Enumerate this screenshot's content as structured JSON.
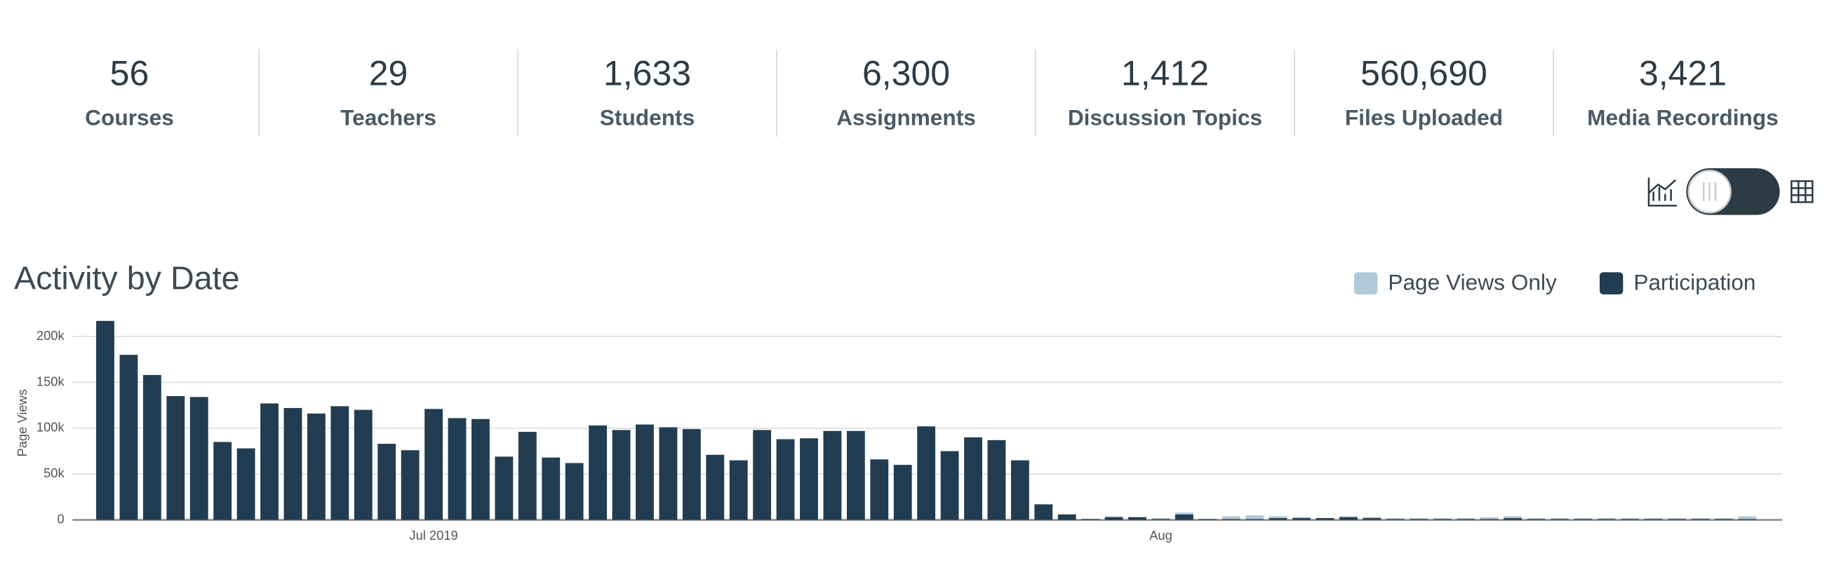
{
  "stats": [
    {
      "value": "56",
      "label": "Courses"
    },
    {
      "value": "29",
      "label": "Teachers"
    },
    {
      "value": "1,633",
      "label": "Students"
    },
    {
      "value": "6,300",
      "label": "Assignments"
    },
    {
      "value": "1,412",
      "label": "Discussion Topics"
    },
    {
      "value": "560,690",
      "label": "Files Uploaded"
    },
    {
      "value": "3,421",
      "label": "Media Recordings"
    }
  ],
  "chart_data": {
    "type": "stacked-bar",
    "title": "Activity by Date",
    "y_label": "Page Views",
    "categories": [
      null,
      null,
      null,
      null,
      null,
      null,
      null,
      null,
      null,
      null,
      null,
      null,
      null,
      null,
      "Jul 2019",
      null,
      null,
      null,
      null,
      null,
      null,
      null,
      null,
      null,
      null,
      null,
      null,
      null,
      null,
      null,
      null,
      null,
      null,
      null,
      null,
      null,
      null,
      null,
      null,
      null,
      null,
      null,
      null,
      null,
      null,
      "Aug",
      null,
      null,
      null,
      null,
      null,
      null,
      null,
      null,
      null,
      null,
      null,
      null,
      null,
      null,
      null,
      null,
      null,
      null,
      null,
      null,
      null,
      null,
      null,
      null,
      null
    ],
    "series": [
      {
        "name": "Page Views Only",
        "color": "#b1c9d9",
        "values": [
          0,
          0,
          0,
          0,
          0,
          0,
          0,
          0,
          0,
          0,
          0,
          0,
          0,
          0,
          0,
          0,
          0,
          0,
          0,
          0,
          0,
          0,
          0,
          0,
          0,
          0,
          0,
          0,
          0,
          0,
          0,
          0,
          0,
          0,
          0,
          0,
          0,
          0,
          0,
          0,
          0,
          0,
          0,
          1000,
          0,
          1000,
          2000,
          0,
          3000,
          4000,
          2000,
          1000,
          0,
          1000,
          1000,
          1000,
          1000,
          1000,
          1000,
          2000,
          2000,
          1000,
          1000,
          1000,
          1000,
          1000,
          1000,
          1000,
          1000,
          1000,
          3000
        ]
      },
      {
        "name": "Participation",
        "color": "#223d52",
        "values": [
          217000,
          180000,
          158000,
          135000,
          134000,
          85000,
          78000,
          127000,
          122000,
          116000,
          124000,
          120000,
          83000,
          76000,
          121000,
          111000,
          110000,
          69000,
          96000,
          68000,
          62000,
          103000,
          98000,
          104000,
          101000,
          99000,
          71000,
          65000,
          98000,
          88000,
          89000,
          97000,
          97000,
          66000,
          60000,
          102000,
          75000,
          90000,
          87000,
          65000,
          17000,
          6000,
          1000,
          3000,
          3000,
          1000,
          6000,
          1000,
          1000,
          1000,
          2000,
          2000,
          2000,
          3000,
          2000,
          1000,
          1000,
          1000,
          1000,
          1000,
          2000,
          1000,
          1000,
          1000,
          1000,
          1000,
          1000,
          1000,
          1000,
          1000,
          1000
        ]
      }
    ],
    "ylim": [
      0,
      220000
    ],
    "yticks": [
      0,
      {
        "value": 50000,
        "label": "50k"
      },
      {
        "value": 100000,
        "label": "100k"
      },
      {
        "value": 150000,
        "label": "150k"
      },
      {
        "value": 200000,
        "label": "200k"
      }
    ],
    "grid": true
  }
}
